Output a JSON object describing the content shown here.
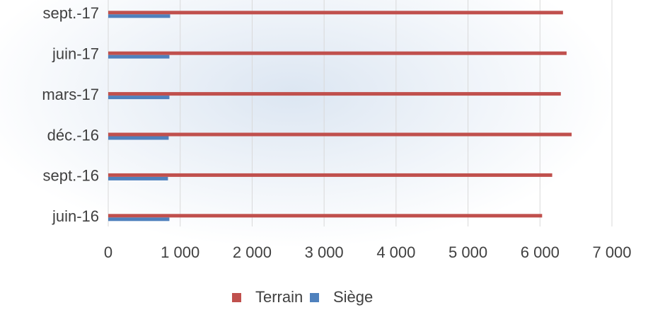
{
  "chart_data": {
    "type": "hbar",
    "categories": [
      "juin-16",
      "sept.-16",
      "déc.-16",
      "mars-17",
      "juin-17",
      "sept.-17"
    ],
    "series": [
      {
        "name": "Terrain",
        "color": "#c0504d",
        "values": [
          6030,
          6170,
          6440,
          6290,
          6370,
          6320
        ]
      },
      {
        "name": "Siège",
        "color": "#4f81bd",
        "values": [
          850,
          830,
          840,
          850,
          850,
          860
        ]
      }
    ],
    "xlim": [
      0,
      7000
    ],
    "xticks": [
      0,
      {
        "value": 1000,
        "label": "1 000"
      },
      {
        "value": 2000,
        "label": "2 000"
      },
      {
        "value": 3000,
        "label": "3 000"
      },
      {
        "value": 4000,
        "label": "4 000"
      },
      {
        "value": 5000,
        "label": "5 000"
      },
      {
        "value": 6000,
        "label": "6 000"
      },
      {
        "value": 7000,
        "label": "7 000"
      }
    ],
    "grid": true,
    "legend": "bottom"
  }
}
